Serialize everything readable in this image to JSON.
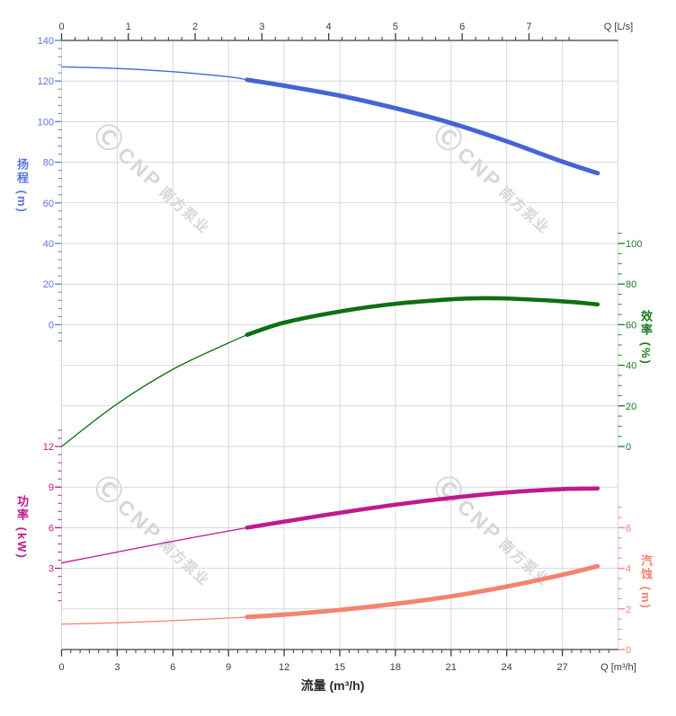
{
  "watermark": {
    "logo": "Ⓒ",
    "text_latin": "CNP",
    "text_cn": "南方泵业",
    "color": "#d5d5d9"
  },
  "chart_data": {
    "type": "line",
    "title": "",
    "description": "Centrifugal pump performance curves: head, efficiency, power and NPSH versus flow",
    "x_axis_bottom": {
      "title": "流量 (m³/h)",
      "end_label": "Q [m³/h]",
      "major_ticks": [
        0,
        3,
        6,
        9,
        12,
        15,
        18,
        21,
        24,
        27
      ],
      "minor_step": 0.5,
      "minor_max": 29.5,
      "range": [
        0,
        30
      ],
      "color": "#3a3a3a"
    },
    "x_axis_top": {
      "end_label": "Q [L/s]",
      "major_ticks": [
        0,
        1,
        2,
        3,
        4,
        5,
        6,
        7
      ],
      "minor_step": 0.2,
      "minor_max": 7.6,
      "range": [
        0,
        8.33
      ],
      "color": "#3a3a3a"
    },
    "grid": {
      "on": true,
      "color": "#d8d8d8"
    },
    "y_axes": [
      {
        "id": "head",
        "title": "扬程 (m)",
        "side": "left",
        "color": "#5a76de",
        "major_ticks": [
          140,
          120,
          100,
          80,
          60,
          40,
          20,
          0
        ],
        "minor_step": 4,
        "minor_range": [
          -8,
          140
        ]
      },
      {
        "id": "efficiency",
        "title": "效率 (%)",
        "side": "right",
        "color": "#1a7a1e",
        "major_ticks": [
          100,
          80,
          60,
          40,
          20,
          0
        ],
        "minor_step": 5,
        "minor_range": [
          0,
          105
        ]
      },
      {
        "id": "power",
        "title": "功率 (kW)",
        "side": "left",
        "color": "#c2188e",
        "major_ticks": [
          12,
          9,
          6,
          3
        ],
        "minor_step": 0.6,
        "minor_range": [
          0.6,
          13.2
        ]
      },
      {
        "id": "npsh",
        "title": "汽蚀 (m)",
        "side": "right",
        "color": "#f4836f",
        "major_ticks": [
          6,
          4,
          2,
          0
        ],
        "minor_step": 0.5,
        "minor_range": [
          0,
          7
        ]
      }
    ],
    "series": [
      {
        "name": "head",
        "axis": "head",
        "color": "#4565d6",
        "rated_from": 10,
        "points": [
          [
            0,
            127
          ],
          [
            3,
            126.2
          ],
          [
            6,
            124.6
          ],
          [
            9,
            122.1
          ],
          [
            10,
            120.6
          ],
          [
            12,
            117.7
          ],
          [
            15,
            112.8
          ],
          [
            18,
            106.6
          ],
          [
            21,
            99.3
          ],
          [
            24,
            90.3
          ],
          [
            27,
            80.3
          ],
          [
            28.9,
            74.6
          ]
        ]
      },
      {
        "name": "efficiency",
        "axis": "efficiency",
        "color": "#0e6f13",
        "rated_from": 10,
        "points": [
          [
            0,
            0
          ],
          [
            3,
            21
          ],
          [
            6,
            38
          ],
          [
            9,
            51
          ],
          [
            10,
            55
          ],
          [
            12,
            61
          ],
          [
            15,
            66.5
          ],
          [
            18,
            70.3
          ],
          [
            21,
            72.5
          ],
          [
            22.5,
            73
          ],
          [
            24,
            72.9
          ],
          [
            27,
            71.5
          ],
          [
            28.9,
            70
          ]
        ]
      },
      {
        "name": "power",
        "axis": "power",
        "color": "#c2188e",
        "rated_from": 10,
        "points": [
          [
            0,
            3.4
          ],
          [
            3,
            4.2
          ],
          [
            6,
            5.0
          ],
          [
            9,
            5.75
          ],
          [
            10,
            6.0
          ],
          [
            12,
            6.45
          ],
          [
            15,
            7.1
          ],
          [
            18,
            7.7
          ],
          [
            21,
            8.2
          ],
          [
            24,
            8.6
          ],
          [
            27,
            8.85
          ],
          [
            28.9,
            8.9
          ]
        ]
      },
      {
        "name": "npsh",
        "axis": "npsh",
        "color": "#f4836f",
        "rated_from": 10,
        "points": [
          [
            0,
            1.25
          ],
          [
            3,
            1.32
          ],
          [
            6,
            1.42
          ],
          [
            9,
            1.55
          ],
          [
            10,
            1.6
          ],
          [
            12,
            1.72
          ],
          [
            15,
            1.95
          ],
          [
            18,
            2.25
          ],
          [
            21,
            2.62
          ],
          [
            24,
            3.1
          ],
          [
            27,
            3.68
          ],
          [
            28.9,
            4.1
          ]
        ]
      }
    ]
  }
}
